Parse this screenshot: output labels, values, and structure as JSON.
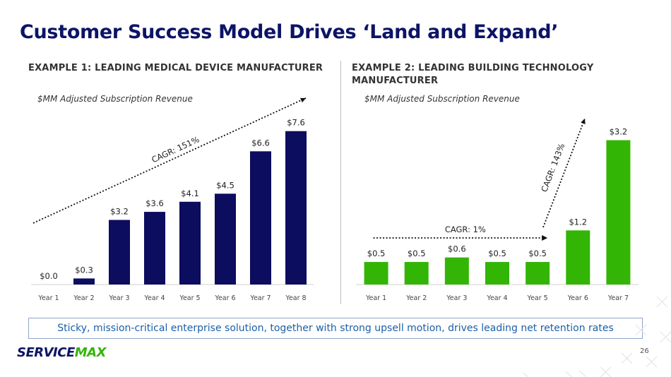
{
  "title": "Customer Success Model Drives ‘Land and Expand’",
  "example1": {
    "heading": "EXAMPLE 1: LEADING MEDICAL DEVICE MANUFACTURER"
  },
  "example2": {
    "heading": "EXAMPLE 2: LEADING BUILDING TECHNOLOGY MANUFACTURER"
  },
  "callout": "Sticky, mission-critical enterprise solution, together with strong upsell motion, drives leading net retention rates",
  "logo": {
    "part1": "SERVICE",
    "part2": "MAX"
  },
  "page_number": "26",
  "chart_data": [
    {
      "type": "bar",
      "subtitle": "$MM Adjusted Subscription Revenue",
      "categories": [
        "Year 1",
        "Year 2",
        "Year 3",
        "Year 4",
        "Year 5",
        "Year 6",
        "Year 7",
        "Year 8"
      ],
      "values": [
        0.0,
        0.3,
        3.2,
        3.6,
        4.1,
        4.5,
        6.6,
        7.6
      ],
      "data_labels": [
        "$0.0",
        "$0.3",
        "$3.2",
        "$3.6",
        "$4.1",
        "$4.5",
        "$6.6",
        "$7.6"
      ],
      "color": "#0c0d5e",
      "ylim": [
        0,
        8.5
      ],
      "grid": false,
      "annotations": [
        {
          "text": "CAGR: 151%",
          "from_category": "Year 1",
          "to_category": "Year 8"
        }
      ]
    },
    {
      "type": "bar",
      "subtitle": "$MM Adjusted Subscription Revenue",
      "categories": [
        "Year 1",
        "Year 2",
        "Year 3",
        "Year 4",
        "Year 5",
        "Year 6",
        "Year 7"
      ],
      "values": [
        0.5,
        0.5,
        0.6,
        0.5,
        0.5,
        1.2,
        3.2
      ],
      "data_labels": [
        "$0.5",
        "$0.5",
        "$0.6",
        "$0.5",
        "$0.5",
        "$1.2",
        "$3.2"
      ],
      "color": "#33b506",
      "ylim": [
        0,
        3.6
      ],
      "grid": false,
      "annotations": [
        {
          "text": "CAGR: 1%",
          "from_category": "Year 1",
          "to_category": "Year 5"
        },
        {
          "text": "CAGR: 143%",
          "from_category": "Year 5",
          "to_category": "Year 7"
        }
      ]
    }
  ]
}
